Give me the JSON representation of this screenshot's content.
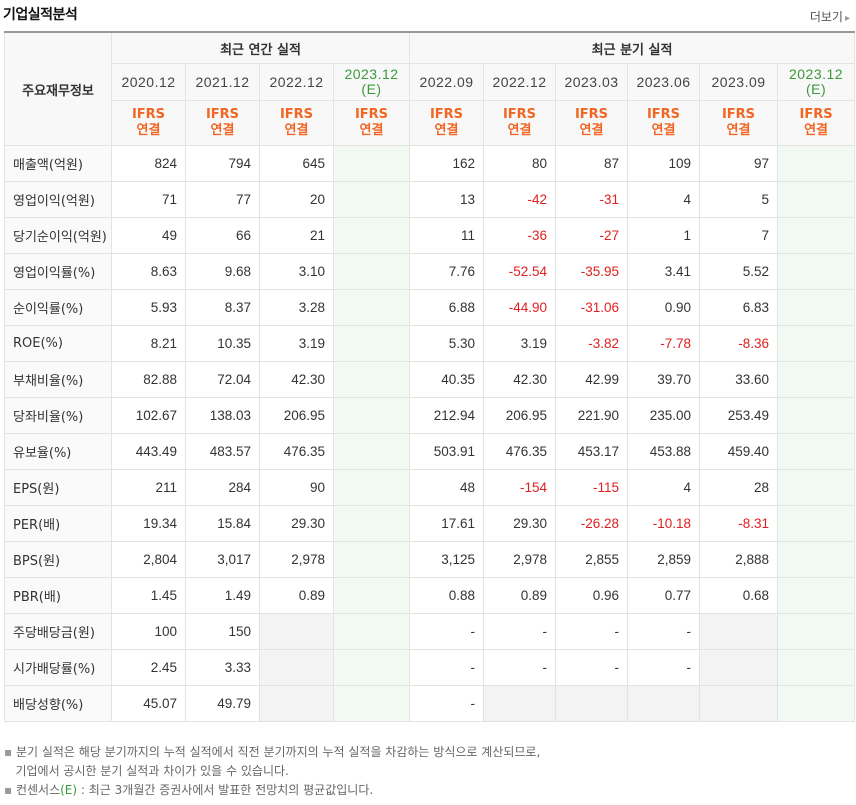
{
  "header": {
    "title": "기업실적분석",
    "more_label": "더보기",
    "more_icon": "chevron-right-icon"
  },
  "table": {
    "label_header": "주요재무정보",
    "annual_group": "최근 연간 실적",
    "quarter_group": "최근 분기 실적",
    "annual_periods": [
      "2020.12",
      "2021.12",
      "2022.12",
      "2023.12"
    ],
    "quarter_periods": [
      "2022.09",
      "2022.12",
      "2023.03",
      "2023.06",
      "2023.09",
      "2023.12"
    ],
    "estimate_mark": "(E)",
    "ifrs_line1": "IFRS",
    "ifrs_line2": "연결",
    "rows": [
      {
        "label": "매출액(억원)",
        "annual": [
          "824",
          "794",
          "645",
          ""
        ],
        "quarter": [
          "162",
          "80",
          "87",
          "109",
          "97",
          ""
        ]
      },
      {
        "label": "영업이익(억원)",
        "annual": [
          "71",
          "77",
          "20",
          ""
        ],
        "quarter": [
          "13",
          "-42",
          "-31",
          "4",
          "5",
          ""
        ]
      },
      {
        "label": "당기순이익(억원)",
        "annual": [
          "49",
          "66",
          "21",
          ""
        ],
        "quarter": [
          "11",
          "-36",
          "-27",
          "1",
          "7",
          ""
        ]
      },
      {
        "label": "영업이익률(%)",
        "annual": [
          "8.63",
          "9.68",
          "3.10",
          ""
        ],
        "quarter": [
          "7.76",
          "-52.54",
          "-35.95",
          "3.41",
          "5.52",
          ""
        ]
      },
      {
        "label": "순이익률(%)",
        "annual": [
          "5.93",
          "8.37",
          "3.28",
          ""
        ],
        "quarter": [
          "6.88",
          "-44.90",
          "-31.06",
          "0.90",
          "6.83",
          ""
        ]
      },
      {
        "label": "ROE(%)",
        "annual": [
          "8.21",
          "10.35",
          "3.19",
          ""
        ],
        "quarter": [
          "5.30",
          "3.19",
          "-3.82",
          "-7.78",
          "-8.36",
          ""
        ]
      },
      {
        "label": "부채비율(%)",
        "annual": [
          "82.88",
          "72.04",
          "42.30",
          ""
        ],
        "quarter": [
          "40.35",
          "42.30",
          "42.99",
          "39.70",
          "33.60",
          ""
        ]
      },
      {
        "label": "당좌비율(%)",
        "annual": [
          "102.67",
          "138.03",
          "206.95",
          ""
        ],
        "quarter": [
          "212.94",
          "206.95",
          "221.90",
          "235.00",
          "253.49",
          ""
        ]
      },
      {
        "label": "유보율(%)",
        "annual": [
          "443.49",
          "483.57",
          "476.35",
          ""
        ],
        "quarter": [
          "503.91",
          "476.35",
          "453.17",
          "453.88",
          "459.40",
          ""
        ]
      },
      {
        "label": "EPS(원)",
        "annual": [
          "211",
          "284",
          "90",
          ""
        ],
        "quarter": [
          "48",
          "-154",
          "-115",
          "4",
          "28",
          ""
        ]
      },
      {
        "label": "PER(배)",
        "annual": [
          "19.34",
          "15.84",
          "29.30",
          ""
        ],
        "quarter": [
          "17.61",
          "29.30",
          "-26.28",
          "-10.18",
          "-8.31",
          ""
        ]
      },
      {
        "label": "BPS(원)",
        "annual": [
          "2,804",
          "3,017",
          "2,978",
          ""
        ],
        "quarter": [
          "3,125",
          "2,978",
          "2,855",
          "2,859",
          "2,888",
          ""
        ]
      },
      {
        "label": "PBR(배)",
        "annual": [
          "1.45",
          "1.49",
          "0.89",
          ""
        ],
        "quarter": [
          "0.88",
          "0.89",
          "0.96",
          "0.77",
          "0.68",
          ""
        ]
      },
      {
        "label": "주당배당금(원)",
        "annual": [
          "100",
          "150",
          "",
          ""
        ],
        "quarter": [
          "-",
          "-",
          "-",
          "-",
          "",
          ""
        ]
      },
      {
        "label": "시가배당률(%)",
        "annual": [
          "2.45",
          "3.33",
          "",
          ""
        ],
        "quarter": [
          "-",
          "-",
          "-",
          "-",
          "",
          ""
        ]
      },
      {
        "label": "배당성향(%)",
        "annual": [
          "45.07",
          "49.79",
          "",
          ""
        ],
        "quarter": [
          "-",
          "",
          "",
          "",
          "",
          ""
        ]
      }
    ]
  },
  "notes": {
    "line1": "분기 실적은 해당 분기까지의 누적 실적에서 직전 분기까지의 누적 실적을 차감하는 방식으로 계산되므로,",
    "line2": "기업에서 공시한 분기 실적과 차이가 있을 수 있습니다.",
    "line3_prefix": "컨센서스",
    "line3_mark": "(E)",
    "line3_rest": " : 최근 3개월간 증권사에서 발표한 전망치의 평균값입니다."
  },
  "colors": {
    "ifrs": "#f26522",
    "negative": "#e02020",
    "estimate": "#3a9a3a"
  }
}
